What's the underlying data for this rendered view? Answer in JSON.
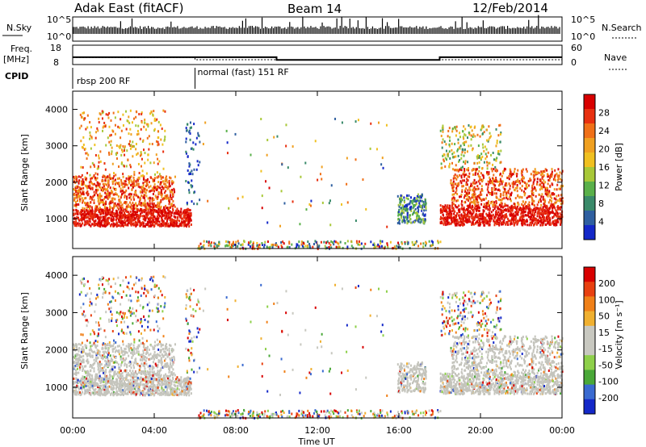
{
  "header": {
    "station": "Adak East (fitACF)",
    "beam": "Beam 14",
    "date": "12/Feb/2014"
  },
  "colors": {
    "power_scale": [
      "#1428c8",
      "#2f5fa0",
      "#3a8a6a",
      "#5ab04a",
      "#a8c838",
      "#f0c020",
      "#f0a020",
      "#f07018",
      "#e83010",
      "#d80000"
    ],
    "velocity_scale": [
      "#1428c8",
      "#3a6ad0",
      "#4aa838",
      "#8ed04a",
      "#c8c8c0",
      "#c8c8c0",
      "#f0b030",
      "#f08018",
      "#e84010",
      "#d80000"
    ],
    "ground_scatter": "#c4c4bc"
  },
  "chart_data": [
    {
      "type": "line",
      "name": "summary",
      "left_labels": {
        "nsky": "N.Sky",
        "freq": "Freq.",
        "freq_unit": "[MHz]",
        "cpid": "CPID"
      },
      "right_labels": {
        "nsearch": "N.Search",
        "nave": "Nave"
      },
      "noise_axis_ticks": [
        "10^5",
        "10^0"
      ],
      "freq_axis_ticks": [
        "18",
        "8"
      ],
      "nave_axis_ticks": [
        "60",
        "0"
      ],
      "frequency": [
        {
          "start_hour": 0.0,
          "end_hour": 10.0,
          "mhz": 11.8
        },
        {
          "start_hour": 10.0,
          "end_hour": 18.0,
          "mhz": 10.4
        },
        {
          "start_hour": 18.0,
          "end_hour": 24.0,
          "mhz": 11.8
        }
      ],
      "nave": [
        {
          "start_hour": 0.0,
          "end_hour": 6.0,
          "value": 22
        },
        {
          "start_hour": 6.0,
          "end_hour": 24.0,
          "value": 15
        }
      ],
      "cpid_segments": [
        {
          "start_hour": 0.0,
          "label": "rbsp 200 RF"
        },
        {
          "start_hour": 6.0,
          "label": "normal (fast) 151 RF"
        }
      ]
    },
    {
      "type": "heatmap",
      "name": "power",
      "ylabel": "Slant Range [km]",
      "ylim": [
        180,
        4500
      ],
      "y_ticks": [
        1000,
        2000,
        3000,
        4000
      ],
      "xlim": [
        0,
        24
      ],
      "colorbar_label": "Power [dB]",
      "colorbar_ticks": [
        "28",
        "24",
        "20",
        "16",
        "12",
        "8",
        "4"
      ],
      "scatter_regions": [
        {
          "t_start": 0.0,
          "t_end": 6.0,
          "range_low_km": 820,
          "range_high_km": 4100,
          "level": "high"
        },
        {
          "t_start": 16.0,
          "t_end": 17.3,
          "range_low_km": 900,
          "range_high_km": 1700,
          "level": "medium"
        },
        {
          "t_start": 18.0,
          "t_end": 24.0,
          "range_low_km": 850,
          "range_high_km": 3600,
          "level": "high"
        }
      ]
    },
    {
      "type": "heatmap",
      "name": "velocity",
      "ylabel": "Slant Range [km]",
      "ylim": [
        180,
        4500
      ],
      "y_ticks": [
        1000,
        2000,
        3000,
        4000
      ],
      "xlim": [
        0,
        24
      ],
      "x_ticks": [
        "00:00",
        "04:00",
        "08:00",
        "12:00",
        "16:00",
        "20:00",
        "00:00"
      ],
      "xlabel": "Time UT",
      "colorbar_label": "Velocity [m s⁻¹]",
      "colorbar_ticks": [
        "200",
        "100",
        "50",
        "15",
        "-15",
        "-50",
        "-100",
        "-200"
      ]
    }
  ]
}
